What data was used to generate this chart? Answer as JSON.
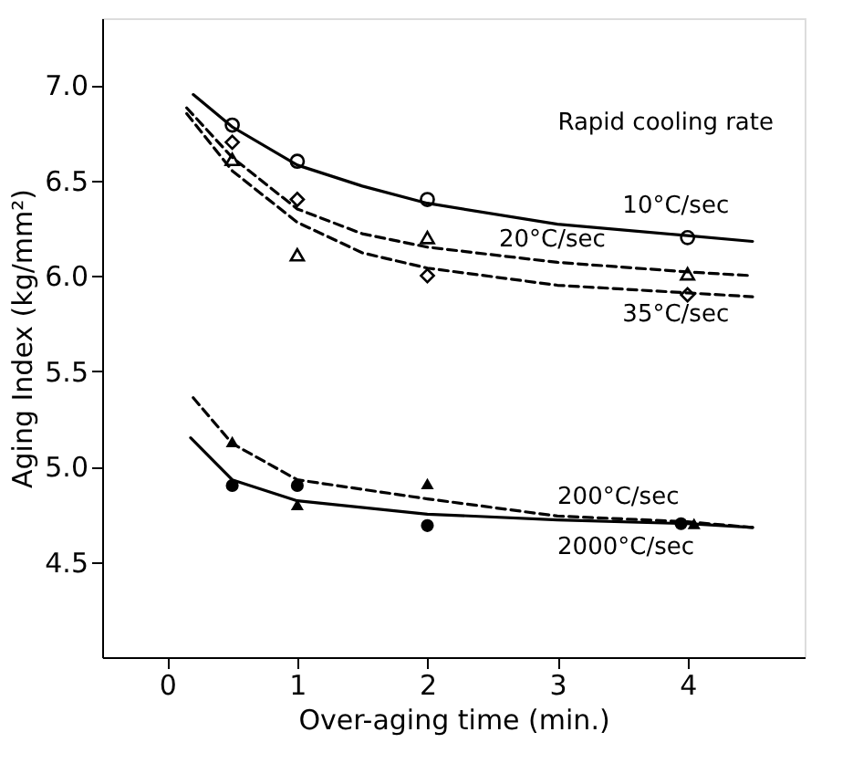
{
  "chart_data": {
    "type": "scatter",
    "xlabel": "Over-aging time (min.)",
    "ylabel": "Aging Index (kg/mm²)",
    "legend_title": "Rapid cooling rate",
    "xlim": [
      -0.5,
      4.9
    ],
    "xticks": [
      0,
      1,
      2,
      3,
      4
    ],
    "ylim": [
      4.0,
      7.35
    ],
    "yticks": [
      {
        "value": 4.5,
        "label": "4.5"
      },
      {
        "value": 5.0,
        "label": "5.0"
      },
      {
        "value": 5.5,
        "label": "5.5"
      },
      {
        "value": 6.0,
        "label": "6.0"
      },
      {
        "value": 6.5,
        "label": "6.5"
      },
      {
        "value": 7.0,
        "label": "7.0"
      }
    ],
    "series": [
      {
        "name": "10°C/sec",
        "type": "line",
        "line_style": "solid",
        "color": "#000000",
        "x": [
          0.2,
          0.5,
          1,
          1.5,
          2,
          3,
          4,
          4.5
        ],
        "values": [
          6.95,
          6.78,
          6.58,
          6.47,
          6.38,
          6.27,
          6.21,
          6.18
        ]
      },
      {
        "name": "20°C/sec",
        "type": "line",
        "line_style": "dashed",
        "color": "#000000",
        "x": [
          0.15,
          0.5,
          1,
          1.5,
          2,
          3,
          4,
          4.5
        ],
        "values": [
          6.88,
          6.62,
          6.35,
          6.22,
          6.15,
          6.07,
          6.02,
          6.0
        ]
      },
      {
        "name": "35°C/sec",
        "type": "line",
        "line_style": "dashed",
        "color": "#000000",
        "x": [
          0.15,
          0.5,
          1,
          1.5,
          2,
          3,
          4,
          4.5
        ],
        "values": [
          6.85,
          6.55,
          6.28,
          6.12,
          6.04,
          5.95,
          5.91,
          5.89
        ]
      },
      {
        "name": "200°C/sec",
        "type": "line",
        "line_style": "dashed",
        "color": "#000000",
        "x": [
          0.2,
          0.5,
          1,
          2,
          3,
          4,
          4.5
        ],
        "values": [
          5.36,
          5.12,
          4.93,
          4.83,
          4.74,
          4.71,
          4.68
        ]
      },
      {
        "name": "2000°C/sec",
        "type": "line",
        "line_style": "solid",
        "color": "#000000",
        "x": [
          0.18,
          0.5,
          1,
          2,
          3,
          4,
          4.5
        ],
        "values": [
          5.15,
          4.93,
          4.82,
          4.75,
          4.72,
          4.7,
          4.68
        ]
      },
      {
        "marker": "circle",
        "color": "#000000",
        "x": [
          0.5,
          1,
          2,
          4
        ],
        "values": [
          6.79,
          6.6,
          6.4,
          6.2
        ]
      },
      {
        "marker": "triangle",
        "color": "#000000",
        "x": [
          0.5,
          1,
          2,
          4
        ],
        "values": [
          6.61,
          6.11,
          6.2,
          6.01
        ]
      },
      {
        "marker": "diamond",
        "color": "#000000",
        "x": [
          0.5,
          1,
          2,
          4
        ],
        "values": [
          6.7,
          6.4,
          6.0,
          5.9
        ]
      },
      {
        "marker": "triangle",
        "color": "#000000",
        "x": [
          0.5,
          1,
          2,
          4.05
        ],
        "values": [
          5.13,
          4.8,
          4.91,
          4.7
        ]
      },
      {
        "marker": "circle",
        "color": "#000000",
        "x": [
          0.5,
          1,
          2,
          3.95
        ],
        "values": [
          4.9,
          4.9,
          4.69,
          4.7
        ]
      }
    ]
  }
}
